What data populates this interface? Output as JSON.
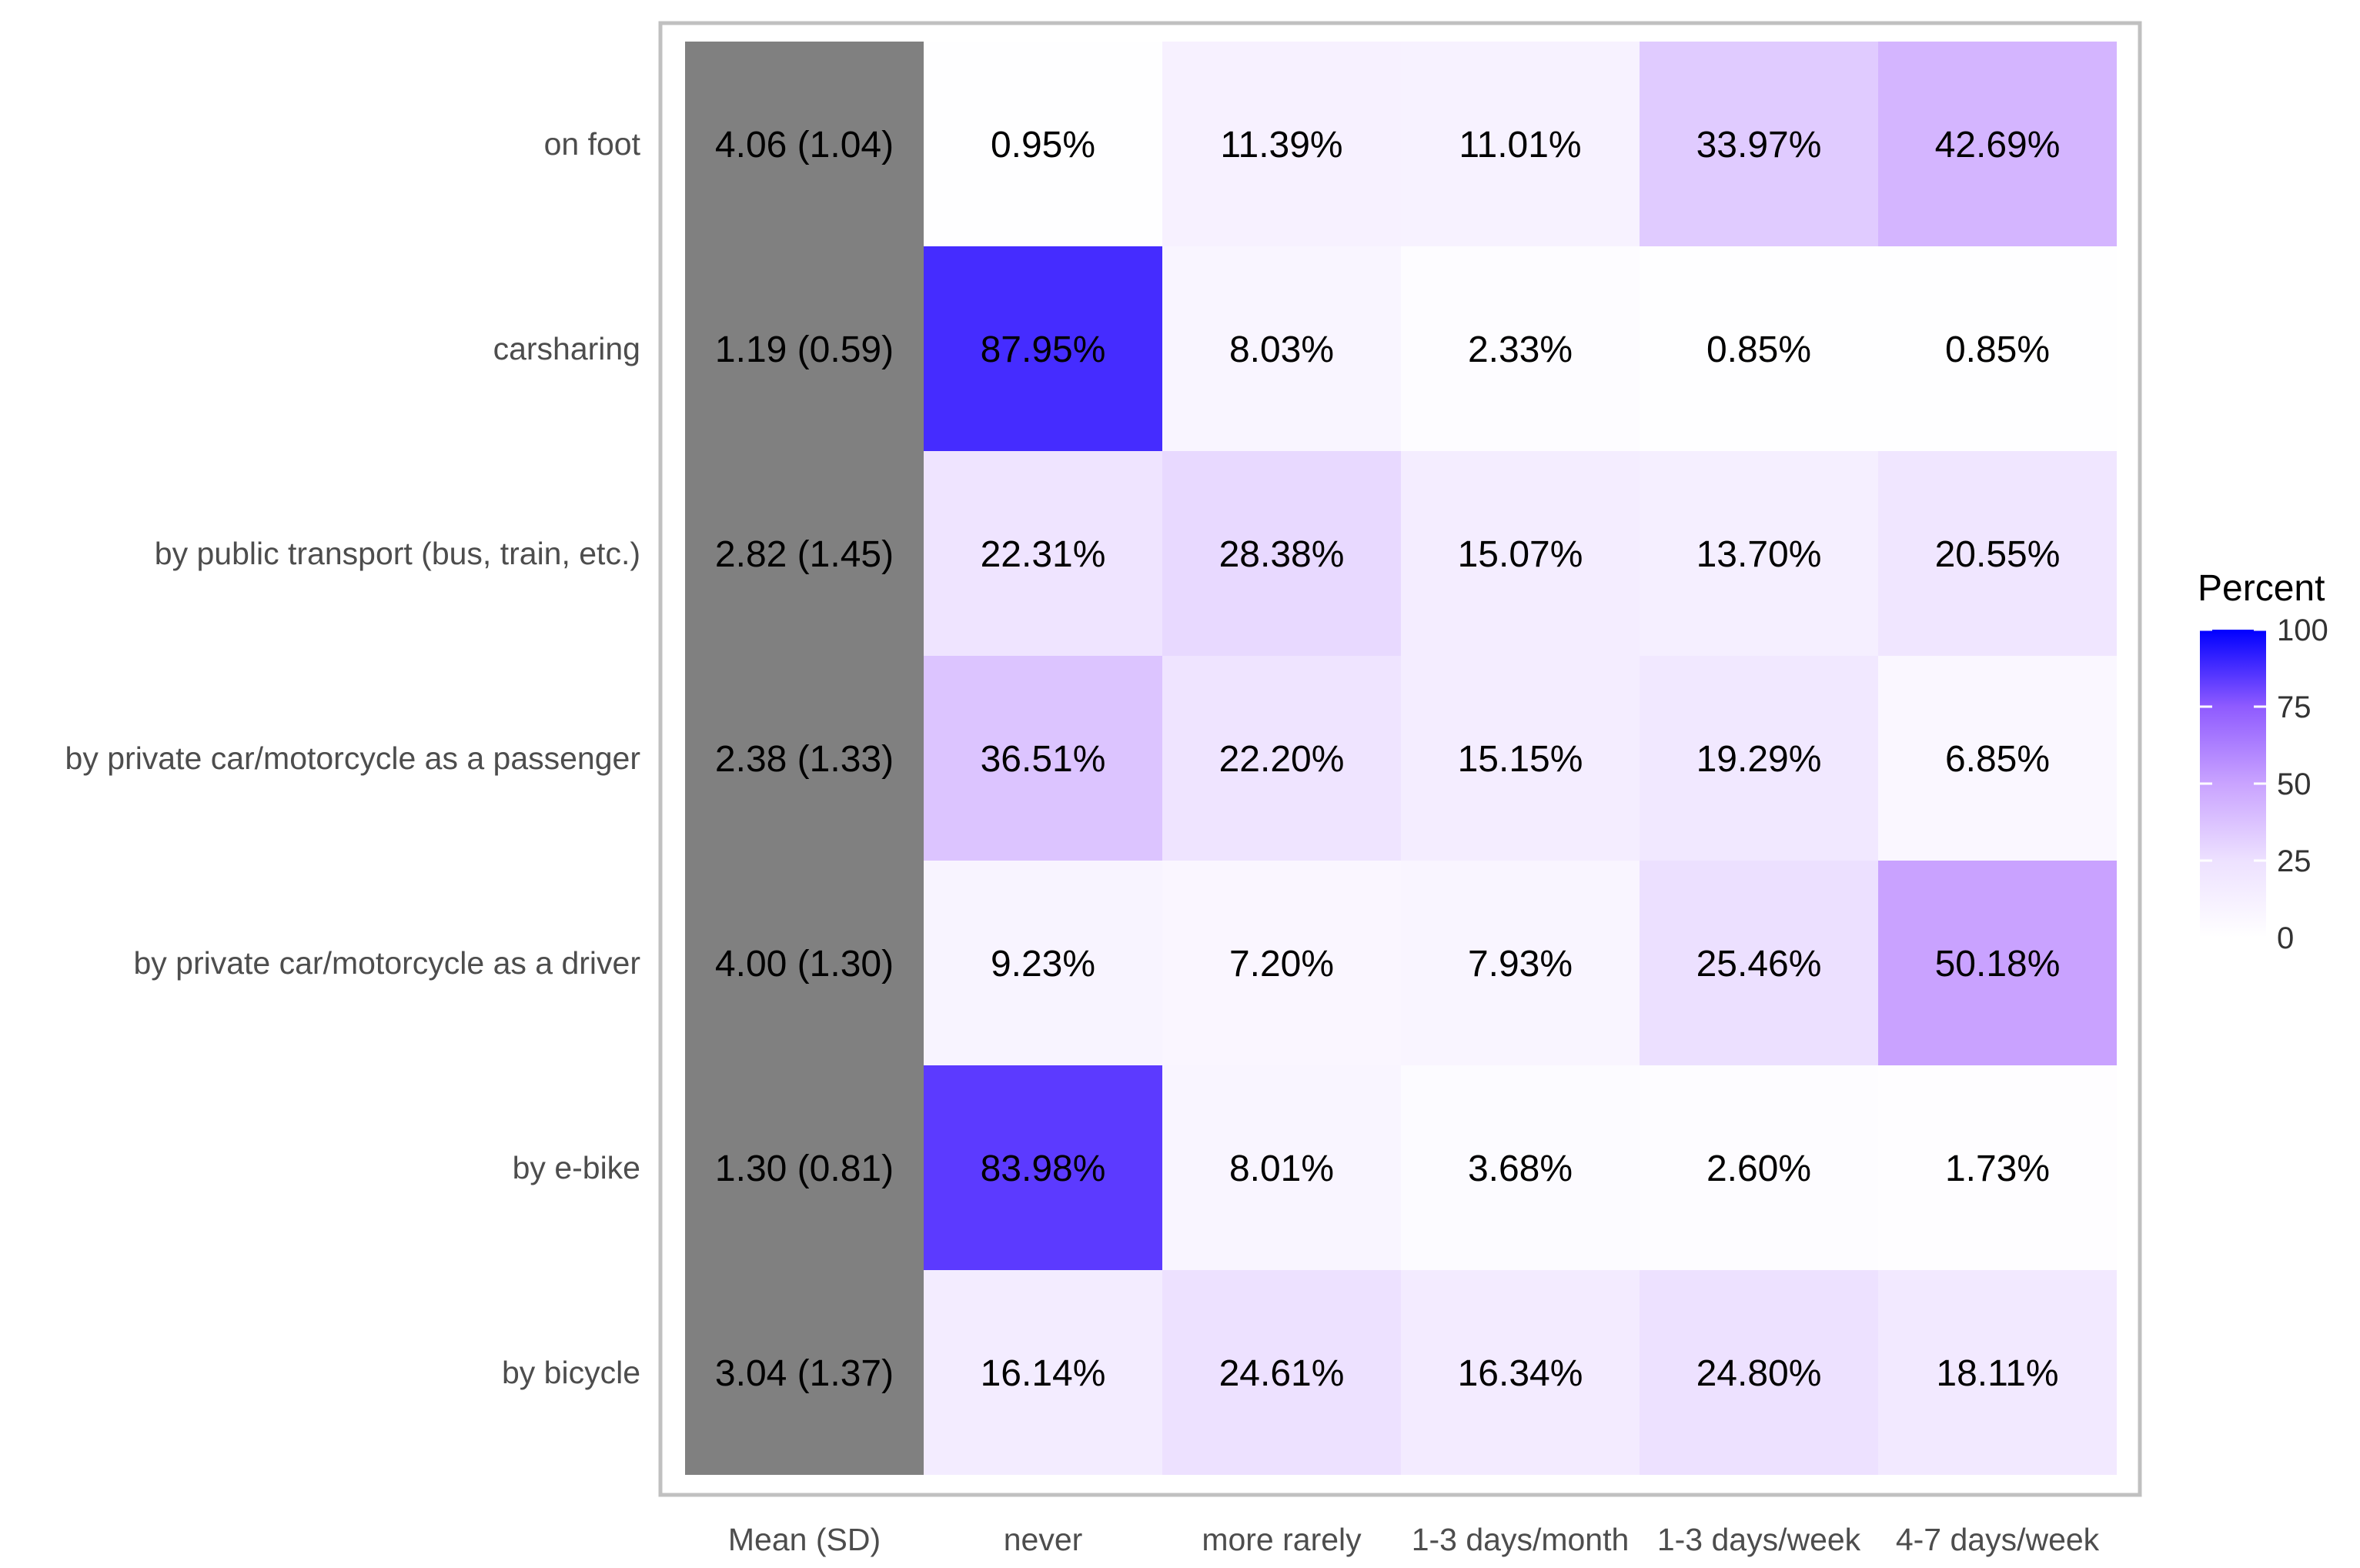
{
  "chart_data": {
    "type": "heatmap",
    "title": "",
    "xlabel": "",
    "ylabel": "",
    "columns": [
      "Mean (SD)",
      "never",
      "more rarely",
      "1-3 days/month",
      "1-3 days/week",
      "4-7 days/week"
    ],
    "rows": [
      {
        "label": "on foot",
        "mean_sd": "4.06 (1.04)",
        "values": [
          0.95,
          11.39,
          11.01,
          33.97,
          42.69
        ],
        "texts": [
          "0.95%",
          "11.39%",
          "11.01%",
          "33.97%",
          "42.69%"
        ]
      },
      {
        "label": "carsharing",
        "mean_sd": "1.19 (0.59)",
        "values": [
          87.95,
          8.03,
          2.33,
          0.85,
          0.85
        ],
        "texts": [
          "87.95%",
          "8.03%",
          "2.33%",
          "0.85%",
          "0.85%"
        ]
      },
      {
        "label": "by public transport (bus, train, etc.)",
        "mean_sd": "2.82 (1.45)",
        "values": [
          22.31,
          28.38,
          15.07,
          13.7,
          20.55
        ],
        "texts": [
          "22.31%",
          "28.38%",
          "15.07%",
          "13.70%",
          "20.55%"
        ]
      },
      {
        "label": "by private car/motorcycle as a passenger",
        "mean_sd": "2.38 (1.33)",
        "values": [
          36.51,
          22.2,
          15.15,
          19.29,
          6.85
        ],
        "texts": [
          "36.51%",
          "22.20%",
          "15.15%",
          "19.29%",
          "6.85%"
        ]
      },
      {
        "label": "by private car/motorcycle as a driver",
        "mean_sd": "4.00 (1.30)",
        "values": [
          9.23,
          7.2,
          7.93,
          25.46,
          50.18
        ],
        "texts": [
          "9.23%",
          "7.20%",
          "7.93%",
          "25.46%",
          "50.18%"
        ]
      },
      {
        "label": "by e-bike",
        "mean_sd": "1.30 (0.81)",
        "values": [
          83.98,
          8.01,
          3.68,
          2.6,
          1.73
        ],
        "texts": [
          "83.98%",
          "8.01%",
          "3.68%",
          "2.60%",
          "1.73%"
        ]
      },
      {
        "label": "by bicycle",
        "mean_sd": "3.04 (1.37)",
        "values": [
          16.14,
          24.61,
          16.34,
          24.8,
          18.11
        ],
        "texts": [
          "16.14%",
          "24.61%",
          "16.34%",
          "24.80%",
          "18.11%"
        ]
      }
    ],
    "legend": {
      "title": "Percent",
      "range": [
        0,
        100
      ],
      "ticks": [
        {
          "value": 100,
          "label": "100"
        },
        {
          "value": 75,
          "label": "75"
        },
        {
          "value": 50,
          "label": "50"
        },
        {
          "value": 25,
          "label": "25"
        },
        {
          "value": 0,
          "label": "0"
        }
      ],
      "position": "right"
    },
    "colors": {
      "low": "#ffffff",
      "high": "#0000ff",
      "mean_cell": "#808080",
      "panel_border": "#c0c0c0"
    }
  }
}
